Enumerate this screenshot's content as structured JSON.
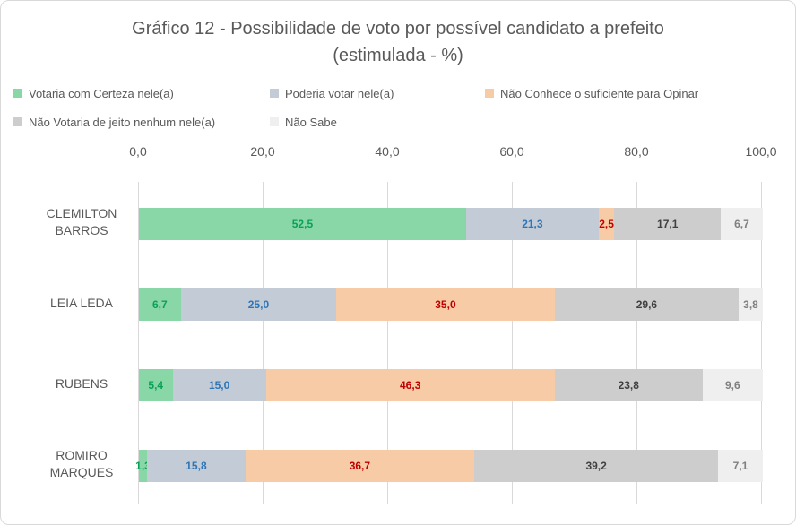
{
  "title": {
    "line1": "Gráfico 12 - Possibilidade de voto por possível candidato a prefeito",
    "line2": "(estimulada - %)"
  },
  "chart_data": {
    "type": "bar",
    "orientation": "horizontal",
    "stacked": true,
    "grid": true,
    "legend_position": "top",
    "title": "Gráfico 12 - Possibilidade de voto por possível candidato a prefeito (estimulada - %)",
    "x_axis": {
      "position": "top",
      "min": 0,
      "max": 100,
      "ticks": [
        "0,0",
        "20,0",
        "40,0",
        "60,0",
        "80,0",
        "100,0"
      ]
    },
    "categories": [
      "CLEMILTON BARROS",
      "LEIA LÉDA",
      "RUBENS",
      "ROMIRO MARQUES"
    ],
    "series": [
      {
        "name": "Votaria com Certeza nele(a)",
        "color": "#89d7a6",
        "label_color": "#0aa156",
        "values": [
          52.5,
          6.7,
          5.4,
          1.3
        ],
        "labels": [
          "52,5",
          "6,7",
          "5,4",
          "1,3"
        ]
      },
      {
        "name": "Poderia votar nele(a)",
        "color": "#c2cbd6",
        "label_color": "#2e75b6",
        "values": [
          21.3,
          25.0,
          15.0,
          15.8
        ],
        "labels": [
          "21,3",
          "25,0",
          "15,0",
          "15,8"
        ]
      },
      {
        "name": "Não Conhece o suficiente para Opinar",
        "color": "#f6cba6",
        "label_color": "#c00000",
        "values": [
          2.5,
          35.0,
          46.3,
          36.7
        ],
        "labels": [
          "2,5",
          "35,0",
          "46,3",
          "36,7"
        ]
      },
      {
        "name": "Não Votaria de jeito nenhum nele(a)",
        "color": "#cdcdcd",
        "label_color": "#404040",
        "values": [
          17.1,
          29.6,
          23.8,
          39.2
        ],
        "labels": [
          "17,1",
          "29,6",
          "23,8",
          "39,2"
        ]
      },
      {
        "name": "Não Sabe",
        "color": "#efefef",
        "label_color": "#7f7f7f",
        "values": [
          6.7,
          3.8,
          9.6,
          7.1
        ],
        "labels": [
          "6,7",
          "3,8",
          "9,6",
          "7,1"
        ]
      }
    ]
  }
}
